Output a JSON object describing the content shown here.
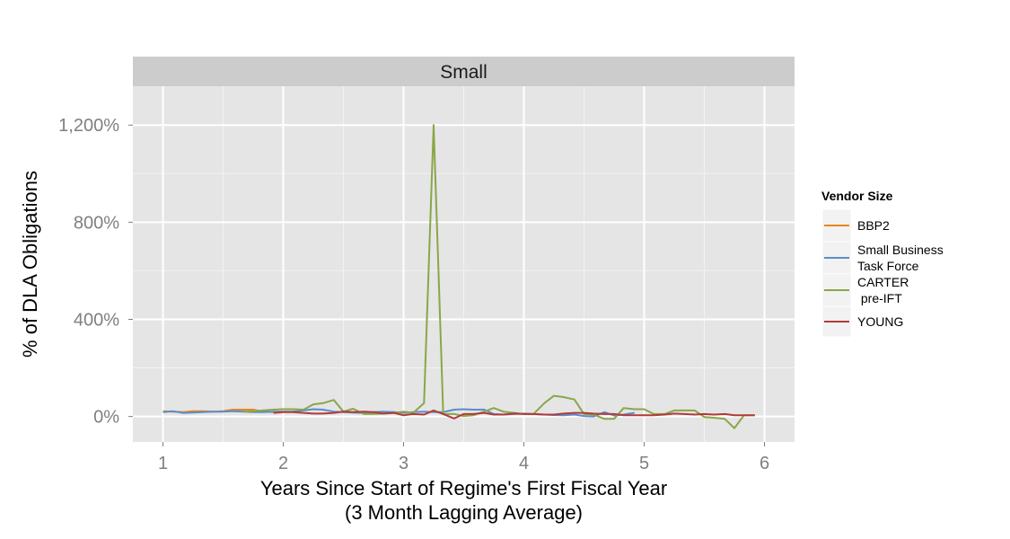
{
  "chart_data": {
    "type": "line",
    "facet_label": "Small",
    "xlabel_line1": "Years Since Start of Regime's First Fiscal Year",
    "xlabel_line2": "(3 Month Lagging Average)",
    "ylabel": "% of DLA Obligations",
    "xlim": [
      0.75,
      6.25
    ],
    "ylim": [
      -105,
      1360
    ],
    "x_ticks": [
      1,
      2,
      3,
      4,
      5,
      6
    ],
    "x_tick_labels": [
      "1",
      "2",
      "3",
      "4",
      "5",
      "6"
    ],
    "y_ticks": [
      0,
      400,
      800,
      1200
    ],
    "y_tick_labels": [
      "0%",
      "400%",
      "800%",
      "1,200%"
    ],
    "grid": true,
    "legend_title": "Vendor Size",
    "legend_position": "right",
    "series": [
      {
        "name": "BBP2",
        "legend_lines": [
          "BBP2"
        ],
        "color": "#e6861e",
        "x": [
          1.0,
          1.08,
          1.17,
          1.25,
          1.33,
          1.42,
          1.5,
          1.58,
          1.67,
          1.75,
          1.83,
          1.92,
          2.0
        ],
        "y": [
          22,
          20,
          18,
          22,
          22,
          20,
          22,
          28,
          28,
          28,
          20,
          18,
          18
        ]
      },
      {
        "name": "Small Business Task Force",
        "legend_lines": [
          "Small Business",
          "Task Force"
        ],
        "color": "#5b8dc9",
        "x": [
          1.0,
          1.08,
          1.17,
          1.25,
          1.33,
          1.42,
          1.5,
          1.58,
          1.67,
          1.75,
          1.83,
          1.92,
          2.0,
          2.08,
          2.17,
          2.25,
          2.33,
          2.42,
          2.5,
          2.58,
          2.67,
          2.75,
          2.83,
          2.92,
          3.0,
          3.08,
          3.17,
          3.25,
          3.33,
          3.42,
          3.5,
          3.58,
          3.67,
          3.75,
          3.83,
          3.92,
          4.0,
          4.08,
          4.17,
          4.25,
          4.33,
          4.42,
          4.5,
          4.58,
          4.67,
          4.75,
          4.83,
          4.92
        ],
        "y": [
          18,
          22,
          15,
          16,
          18,
          20,
          20,
          22,
          20,
          18,
          18,
          20,
          20,
          20,
          25,
          30,
          28,
          20,
          18,
          16,
          14,
          18,
          20,
          18,
          15,
          18,
          20,
          18,
          18,
          28,
          30,
          28,
          28,
          10,
          8,
          10,
          12,
          10,
          8,
          6,
          5,
          8,
          2,
          0,
          18,
          4,
          8,
          15
        ]
      },
      {
        "name": "CARTER pre-IFT",
        "legend_lines": [
          "CARTER",
          " pre-IFT"
        ],
        "color": "#8aa64a",
        "x": [
          1.67,
          1.75,
          1.83,
          1.92,
          2.0,
          2.08,
          2.17,
          2.25,
          2.33,
          2.42,
          2.5,
          2.58,
          2.67,
          2.75,
          2.83,
          2.92,
          3.0,
          3.08,
          3.17,
          3.25,
          3.33,
          3.42,
          3.5,
          3.58,
          3.67,
          3.75,
          3.83,
          3.92,
          4.0,
          4.08,
          4.17,
          4.25,
          4.33,
          4.42,
          4.5,
          4.58,
          4.67,
          4.75,
          4.83,
          4.92,
          5.0,
          5.08,
          5.17,
          5.25,
          5.33,
          5.42,
          5.5,
          5.58,
          5.67,
          5.75,
          5.83,
          5.92
        ],
        "y": [
          20,
          22,
          25,
          28,
          30,
          30,
          28,
          50,
          55,
          68,
          20,
          32,
          10,
          10,
          12,
          15,
          20,
          15,
          55,
          1200,
          10,
          10,
          2,
          5,
          20,
          35,
          20,
          15,
          10,
          10,
          55,
          85,
          80,
          70,
          10,
          8,
          -10,
          -10,
          35,
          30,
          30,
          10,
          10,
          25,
          25,
          25,
          -2,
          -5,
          -10,
          -48,
          5,
          5
        ]
      },
      {
        "name": "YOUNG",
        "legend_lines": [
          "YOUNG"
        ],
        "color": "#b23a3a",
        "x": [
          1.92,
          2.0,
          2.08,
          2.17,
          2.25,
          2.33,
          2.42,
          2.5,
          2.58,
          2.67,
          2.75,
          2.83,
          2.92,
          3.0,
          3.08,
          3.17,
          3.25,
          3.33,
          3.42,
          3.5,
          3.58,
          3.67,
          3.75,
          3.83,
          3.92,
          4.0,
          4.08,
          4.17,
          4.25,
          4.33,
          4.42,
          4.5,
          4.58,
          4.67,
          4.75,
          4.83,
          4.92,
          5.0,
          5.08,
          5.17,
          5.25,
          5.33,
          5.42,
          5.5,
          5.58,
          5.67,
          5.75,
          5.83,
          5.92
        ],
        "y": [
          15,
          18,
          18,
          15,
          12,
          12,
          15,
          20,
          18,
          20,
          18,
          12,
          15,
          5,
          10,
          8,
          25,
          10,
          -8,
          10,
          10,
          15,
          8,
          8,
          12,
          10,
          10,
          8,
          8,
          12,
          15,
          15,
          12,
          10,
          10,
          5,
          5,
          5,
          5,
          8,
          12,
          10,
          8,
          10,
          8,
          10,
          5,
          5,
          5
        ]
      }
    ]
  }
}
